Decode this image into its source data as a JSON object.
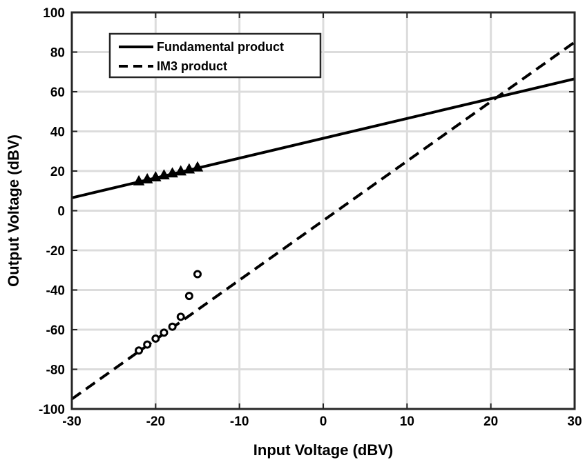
{
  "chart_data": {
    "type": "line",
    "title": "",
    "xlabel": "Input Voltage (dBV)",
    "ylabel": "Output Voltage (dBV)",
    "xlim": [
      -30,
      30
    ],
    "ylim": [
      -100,
      100
    ],
    "xticks": [
      -30,
      -20,
      -10,
      0,
      10,
      20,
      30
    ],
    "yticks": [
      -100,
      -80,
      -60,
      -40,
      -20,
      0,
      20,
      40,
      60,
      80,
      100
    ],
    "grid": true,
    "legend_position": "top-left",
    "series": [
      {
        "name": "Fundamental product",
        "kind": "line",
        "style": "solid",
        "color": "#000000",
        "x": [
          -30,
          30
        ],
        "y": [
          6.5,
          66.5
        ]
      },
      {
        "name": "IM3 product",
        "kind": "line",
        "style": "dashed",
        "color": "#000000",
        "x": [
          -30,
          30
        ],
        "y": [
          -95,
          85
        ]
      },
      {
        "kind": "markers",
        "marker": "triangle",
        "color": "#000000",
        "x": [
          -22,
          -21,
          -20,
          -19,
          -18,
          -17,
          -16,
          -15
        ],
        "y": [
          15,
          16,
          17,
          18,
          19,
          20,
          21,
          22
        ]
      },
      {
        "kind": "markers",
        "marker": "circle",
        "color": "#000000",
        "x": [
          -22,
          -21,
          -20,
          -19,
          -18,
          -17,
          -16,
          -15
        ],
        "y": [
          -70.5,
          -67.5,
          -64.5,
          -61.5,
          -58.5,
          -53.5,
          -43,
          -32
        ]
      }
    ]
  }
}
